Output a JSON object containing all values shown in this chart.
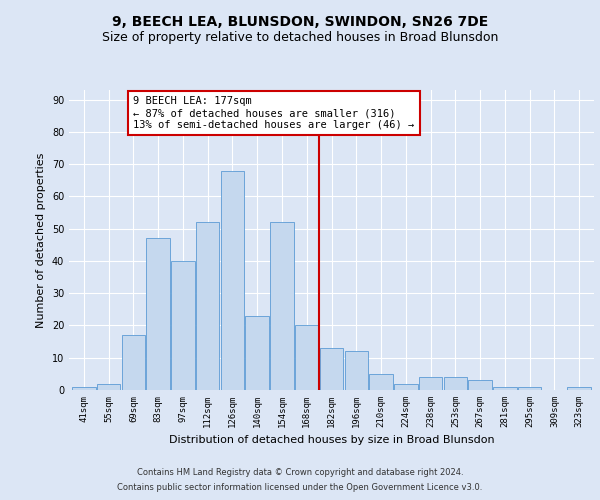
{
  "title1": "9, BEECH LEA, BLUNSDON, SWINDON, SN26 7DE",
  "title2": "Size of property relative to detached houses in Broad Blunsdon",
  "xlabel": "Distribution of detached houses by size in Broad Blunsdon",
  "ylabel": "Number of detached properties",
  "categories": [
    "41sqm",
    "55sqm",
    "69sqm",
    "83sqm",
    "97sqm",
    "112sqm",
    "126sqm",
    "140sqm",
    "154sqm",
    "168sqm",
    "182sqm",
    "196sqm",
    "210sqm",
    "224sqm",
    "238sqm",
    "253sqm",
    "267sqm",
    "281sqm",
    "295sqm",
    "309sqm",
    "323sqm"
  ],
  "values": [
    1,
    2,
    17,
    47,
    40,
    52,
    68,
    23,
    52,
    20,
    13,
    12,
    5,
    2,
    4,
    4,
    3,
    1,
    1,
    0,
    1
  ],
  "bar_color": "#c5d8ee",
  "bar_edge_color": "#5b9bd5",
  "background_color": "#dce6f5",
  "grid_color": "#ffffff",
  "vline_x_index": 9.5,
  "vline_color": "#cc0000",
  "annotation_title": "9 BEECH LEA: 177sqm",
  "annotation_line1": "← 87% of detached houses are smaller (316)",
  "annotation_line2": "13% of semi-detached houses are larger (46) →",
  "annotation_box_color": "#ffffff",
  "annotation_box_edge": "#cc0000",
  "ylim": [
    0,
    93
  ],
  "yticks": [
    0,
    10,
    20,
    30,
    40,
    50,
    60,
    70,
    80,
    90
  ],
  "footer1": "Contains HM Land Registry data © Crown copyright and database right 2024.",
  "footer2": "Contains public sector information licensed under the Open Government Licence v3.0.",
  "title1_fontsize": 10,
  "title2_fontsize": 9,
  "tick_fontsize": 6.5,
  "ylabel_fontsize": 8,
  "xlabel_fontsize": 8,
  "footer_fontsize": 6,
  "ann_fontsize": 7.5
}
